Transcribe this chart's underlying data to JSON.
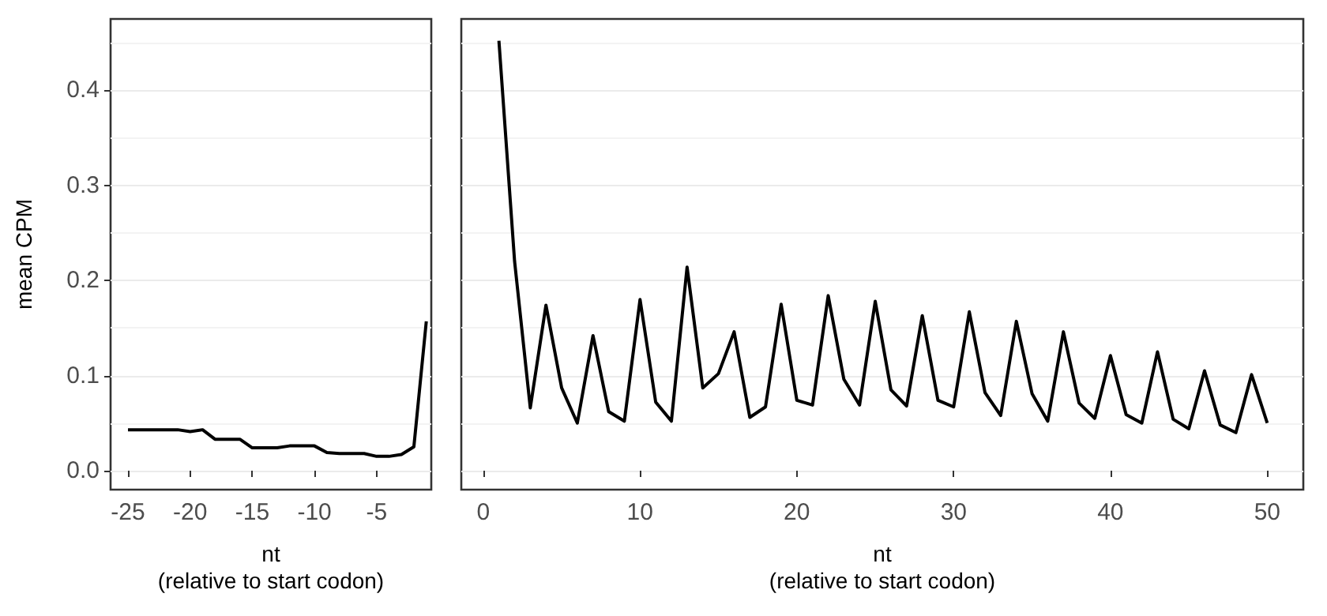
{
  "chart_data": [
    {
      "type": "line",
      "ylabel": "mean CPM",
      "xlabel": "nt\n(relative to start codon)",
      "x": [
        -25,
        -24,
        -23,
        -22,
        -21,
        -20,
        -19,
        -18,
        -17,
        -16,
        -15,
        -14,
        -13,
        -12,
        -11,
        -10,
        -9,
        -8,
        -7,
        -6,
        -5,
        -4,
        -3,
        -2,
        -1
      ],
      "series": [
        {
          "color": "#000000",
          "values": [
            0.043,
            0.043,
            0.043,
            0.043,
            0.043,
            0.041,
            0.043,
            0.033,
            0.033,
            0.033,
            0.024,
            0.024,
            0.024,
            0.026,
            0.026,
            0.026,
            0.019,
            0.018,
            0.018,
            0.018,
            0.015,
            0.015,
            0.017,
            0.025,
            0.157
          ]
        }
      ],
      "xlim": [
        -26.4,
        -0.6
      ],
      "xticks": [
        -25,
        -20,
        -15,
        -10,
        -5
      ],
      "ylim": [
        -0.02,
        0.475
      ],
      "yticks": [
        {
          "value": 0,
          "label": "0.0"
        },
        {
          "value": 0.1,
          "label": "0.1"
        },
        {
          "value": 0.2,
          "label": "0.2"
        },
        {
          "value": 0.3,
          "label": "0.3"
        },
        {
          "value": 0.4,
          "label": "0.4"
        }
      ],
      "grid": "y",
      "marker": "none",
      "line_style": "solid"
    },
    {
      "type": "line",
      "xlabel": "nt\n(relative to start codon)",
      "x": [
        1,
        2,
        3,
        4,
        5,
        6,
        7,
        8,
        9,
        10,
        11,
        12,
        13,
        14,
        15,
        16,
        17,
        18,
        19,
        20,
        21,
        22,
        23,
        24,
        25,
        26,
        27,
        28,
        29,
        30,
        31,
        32,
        33,
        34,
        35,
        36,
        37,
        38,
        39,
        40,
        41,
        42,
        43,
        44,
        45,
        46,
        47,
        48,
        49,
        50
      ],
      "series": [
        {
          "color": "#000000",
          "values": [
            0.452,
            0.22,
            0.066,
            0.174,
            0.087,
            0.05,
            0.142,
            0.062,
            0.052,
            0.18,
            0.072,
            0.052,
            0.214,
            0.087,
            0.102,
            0.146,
            0.056,
            0.067,
            0.175,
            0.074,
            0.069,
            0.184,
            0.096,
            0.069,
            0.178,
            0.085,
            0.068,
            0.163,
            0.074,
            0.067,
            0.167,
            0.082,
            0.058,
            0.157,
            0.081,
            0.052,
            0.146,
            0.071,
            0.055,
            0.121,
            0.059,
            0.05,
            0.125,
            0.054,
            0.044,
            0.105,
            0.048,
            0.04,
            0.101,
            0.05
          ]
        }
      ],
      "xlim": [
        -1.4,
        52.3
      ],
      "xticks": [
        0,
        10,
        20,
        30,
        40,
        50
      ],
      "ylim": [
        -0.02,
        0.475
      ],
      "yticks": [
        0,
        0.1,
        0.2,
        0.3,
        0.4
      ],
      "grid": "y",
      "marker": "none",
      "line_style": "solid",
      "tick_labels": "x"
    }
  ]
}
